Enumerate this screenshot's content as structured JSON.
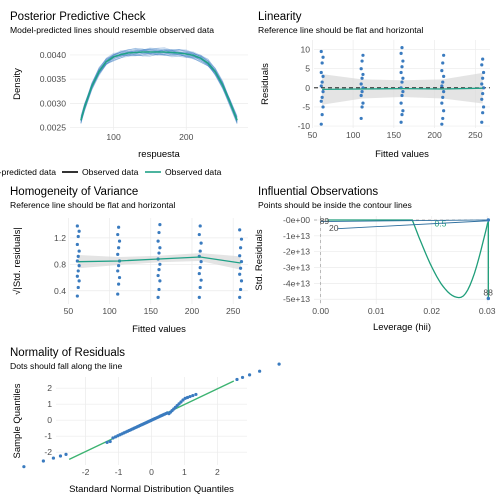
{
  "colors": {
    "observed": "#1fa187",
    "model": "#4a86c8",
    "point": "#3a7bbf",
    "band": "#d9d9d9",
    "reference": "#000000",
    "contour": "#1f9e7a",
    "qqline": "#3cb371",
    "lev_line": "#2f6f9f"
  },
  "chart_data": [
    {
      "id": "ppc",
      "type": "line",
      "title": "Posterior Predictive Check",
      "subtitle": "Model-predicted lines should resemble observed data",
      "xlabel": "respuesta",
      "ylabel": "Density",
      "xlim": [
        40,
        285
      ],
      "ylim": [
        0.00245,
        0.00435
      ],
      "xticks": [
        100,
        200
      ],
      "yticks": [
        0.0025,
        0.003,
        0.0035,
        0.004
      ],
      "ytick_labels": [
        "0.0025",
        "0.0030",
        "0.0035",
        "0.0040"
      ],
      "observed": {
        "x": [
          55,
          60,
          70,
          80,
          90,
          100,
          110,
          120,
          130,
          140,
          150,
          160,
          170,
          180,
          190,
          200,
          210,
          220,
          230,
          240,
          250,
          260,
          270
        ],
        "y": [
          0.00265,
          0.00292,
          0.00335,
          0.00366,
          0.00386,
          0.00396,
          0.00401,
          0.00404,
          0.00405,
          0.00406,
          0.00406,
          0.00406,
          0.00406,
          0.00405,
          0.00404,
          0.00402,
          0.00399,
          0.00393,
          0.00383,
          0.00365,
          0.00338,
          0.00303,
          0.00265
        ]
      },
      "model_curves": 30,
      "legend": [
        "Model-predicted data",
        "Observed data",
        "Observed data"
      ]
    },
    {
      "id": "linearity",
      "type": "scatter",
      "title": "Linearity",
      "subtitle": "Reference line should be flat and horizontal",
      "xlabel": "Fitted values",
      "ylabel": "Residuals",
      "xlim": [
        52,
        268
      ],
      "ylim": [
        -10.5,
        12.5
      ],
      "xticks": [
        50,
        100,
        150,
        200,
        250
      ],
      "yticks": [
        -10,
        -5,
        0,
        5,
        10
      ],
      "groups_x": [
        62,
        111,
        160,
        210,
        259
      ],
      "groups_y": [
        [
          -9.5,
          -7,
          -5,
          -3.5,
          -2.5,
          -1,
          0.5,
          1.5,
          3,
          4,
          6.5,
          8,
          9.5
        ],
        [
          -8,
          -5,
          -4,
          -2,
          -1,
          0,
          1,
          2.5,
          3.5,
          5,
          7,
          8.5
        ],
        [
          -9,
          -7,
          -6,
          -4,
          -2,
          -1,
          0,
          1.5,
          2.5,
          4,
          5.5,
          7,
          9,
          10.5
        ],
        [
          -9.5,
          -8,
          -6,
          -4,
          -2.5,
          -1,
          0.5,
          1.5,
          3,
          4.5,
          6.5,
          8.5
        ],
        [
          -9,
          -6.5,
          -5,
          -3,
          -1.5,
          0,
          1,
          2.5,
          4,
          6,
          7.5
        ]
      ],
      "smooth_y": [
        -0.4,
        -0.3,
        -0.2,
        -0.3,
        -0.1
      ]
    },
    {
      "id": "homogeneity",
      "type": "scatter",
      "title": "Homogeneity of Variance",
      "subtitle": "Reference line should be flat and horizontal",
      "xlabel": "Fitted values",
      "ylabel": "√|Std. residuals|",
      "xlim": [
        52,
        268
      ],
      "ylim": [
        0.2,
        1.5
      ],
      "xticks": [
        50,
        100,
        150,
        200,
        250
      ],
      "yticks": [
        0.4,
        0.8,
        1.2
      ],
      "ytick_labels": [
        "0.4",
        "0.8",
        "1.2"
      ],
      "groups_x": [
        62,
        111,
        160,
        210,
        259
      ],
      "groups_y": [
        [
          0.32,
          0.45,
          0.55,
          0.62,
          0.7,
          0.78,
          0.85,
          0.92,
          1.0,
          1.1,
          1.22,
          1.3,
          1.38
        ],
        [
          0.35,
          0.5,
          0.6,
          0.7,
          0.78,
          0.85,
          0.95,
          1.05,
          1.15,
          1.25,
          1.36
        ],
        [
          0.3,
          0.42,
          0.55,
          0.63,
          0.72,
          0.8,
          0.88,
          0.97,
          1.05,
          1.15,
          1.28,
          1.4
        ],
        [
          0.3,
          0.45,
          0.56,
          0.66,
          0.75,
          0.84,
          0.92,
          1.0,
          1.12,
          1.25,
          1.38
        ],
        [
          0.3,
          0.42,
          0.55,
          0.65,
          0.74,
          0.84,
          0.93,
          1.05,
          1.18,
          1.32
        ]
      ],
      "smooth_y": [
        0.84,
        0.85,
        0.88,
        0.91,
        0.82
      ]
    },
    {
      "id": "influential",
      "type": "scatter",
      "title": "Influential Observations",
      "subtitle": "Points should be inside the contour lines",
      "xlabel": "Leverage (hii)",
      "ylabel": "Std. Residuals",
      "xlim": [
        -0.0012,
        0.0305
      ],
      "ylim": [
        -53000000000000.0,
        2500000000000.0
      ],
      "xticks": [
        0.0,
        0.01,
        0.02,
        0.03
      ],
      "xtick_labels": [
        "0.00",
        "0.01",
        "0.02",
        "0.03"
      ],
      "yticks": [
        0,
        -10000000000000.0,
        -20000000000000.0,
        -30000000000000.0,
        -40000000000000.0,
        -50000000000000.0
      ],
      "ytick_labels": [
        "-0e+00",
        "-1e+13",
        "-2e+13",
        "-3e+13",
        "-4e+13",
        "-5e+13"
      ],
      "contour_label": "0.5",
      "point_labels": [
        "89",
        "20",
        "88"
      ]
    },
    {
      "id": "qq",
      "type": "scatter",
      "title": "Normality of Residuals",
      "subtitle": "Dots should fall along the line",
      "xlabel": "Standard Normal Distribution Quantiles",
      "ylabel": "Sample Quantiles",
      "xlim": [
        -2.9,
        2.9
      ],
      "ylim": [
        -2.8,
        2.7
      ],
      "xticks": [
        -2,
        -1,
        0,
        1,
        2
      ],
      "yticks": [
        -2,
        -1,
        0,
        1,
        2
      ],
      "line": [
        [
          -2.5,
          -2.45
        ],
        [
          2.5,
          2.45
        ]
      ]
    }
  ]
}
